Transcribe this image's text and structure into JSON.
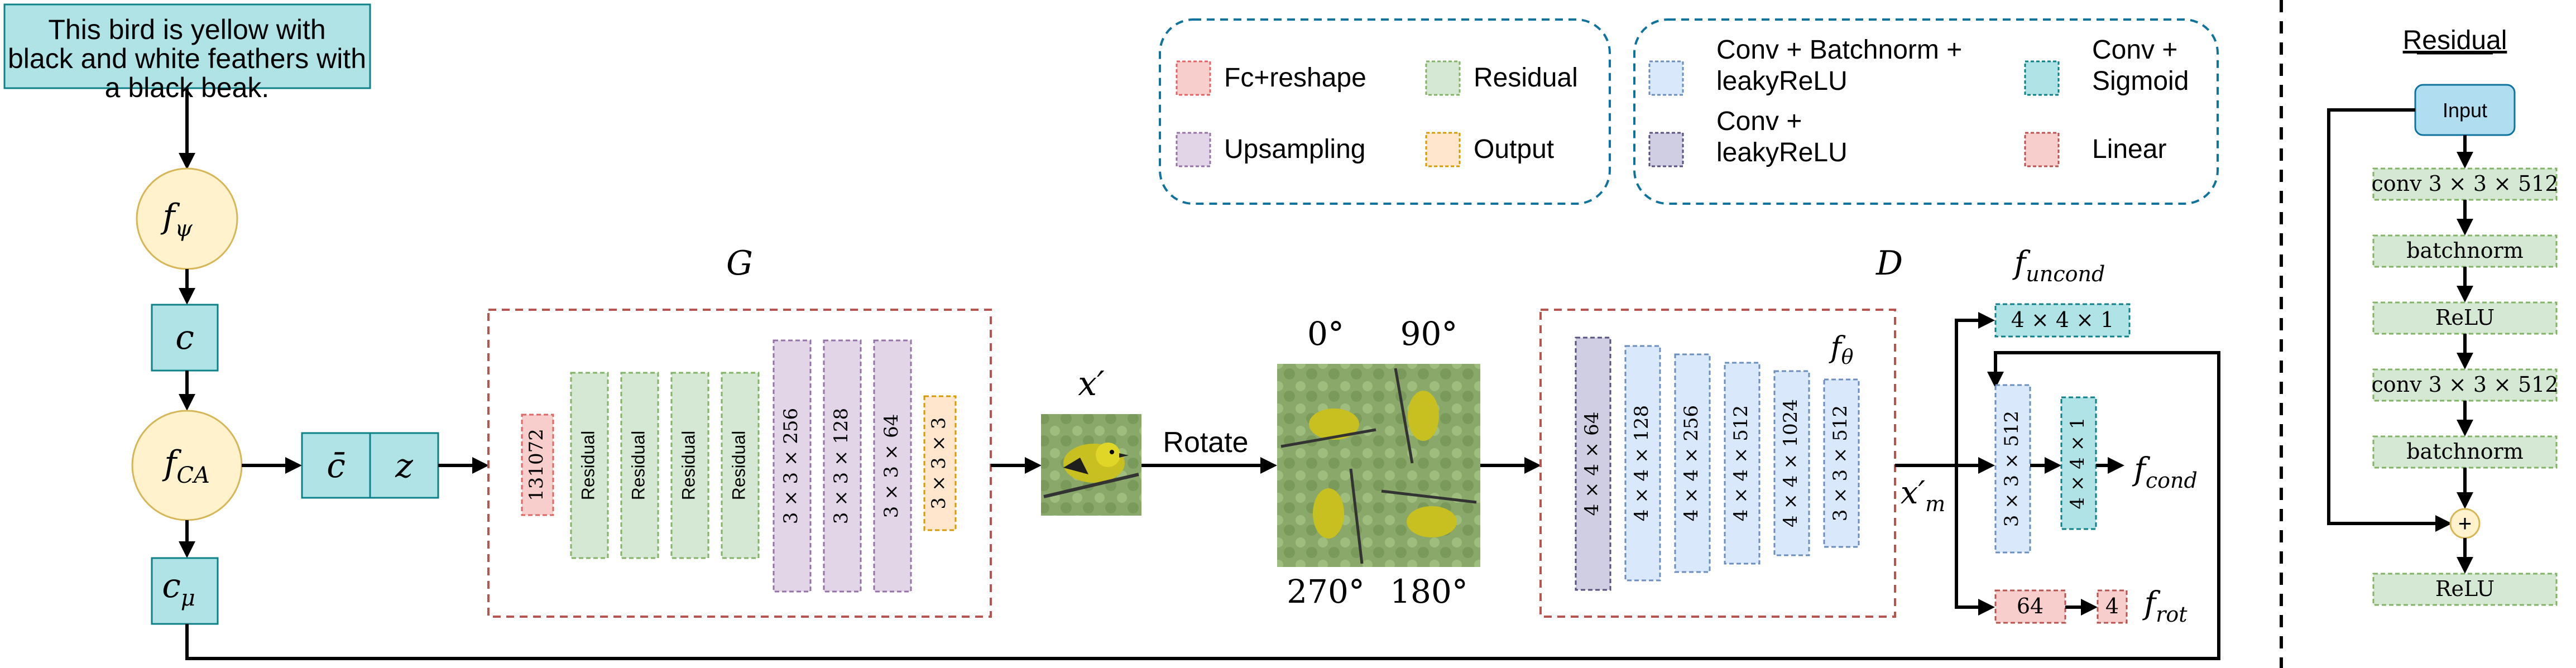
{
  "text_box": "This bird is yellow with black and white feathers with a black beak.",
  "nodes": {
    "f_psi": "f",
    "f_psi_sub": "ψ",
    "c": "c",
    "f_ca": "f",
    "f_ca_sub": "CA",
    "c_mu": "c",
    "c_mu_sub": "μ",
    "c_bar": "c̄",
    "z": "z"
  },
  "generator": {
    "label": "G",
    "layers": [
      {
        "label": "131072",
        "type": "fc"
      },
      {
        "label": "Residual",
        "type": "residual"
      },
      {
        "label": "Residual",
        "type": "residual"
      },
      {
        "label": "Residual",
        "type": "residual"
      },
      {
        "label": "Residual",
        "type": "residual"
      },
      {
        "label": "3 × 3 × 256",
        "type": "upsampling"
      },
      {
        "label": "3 × 3 × 128",
        "type": "upsampling"
      },
      {
        "label": "3 × 3 × 64",
        "type": "upsampling"
      },
      {
        "label": "3 × 3 × 3",
        "type": "output"
      }
    ]
  },
  "x_prime": "x′",
  "rotate_label": "Rotate",
  "rotations": [
    "0°",
    "90°",
    "270°",
    "180°"
  ],
  "discriminator": {
    "label": "D",
    "f_theta": "f",
    "f_theta_sub": "θ",
    "layers": [
      {
        "label": "4 × 4 × 64",
        "type": "conv_leaky"
      },
      {
        "label": "4 × 4 × 128",
        "type": "conv_bn"
      },
      {
        "label": "4 × 4 × 256",
        "type": "conv_bn"
      },
      {
        "label": "4 × 4 × 512",
        "type": "conv_bn"
      },
      {
        "label": "4 × 4 × 1024",
        "type": "conv_bn"
      },
      {
        "label": "3 × 3 × 512",
        "type": "conv_bn"
      }
    ]
  },
  "x_m": "x′",
  "x_m_sub": "m",
  "heads": {
    "uncond_label": "f",
    "uncond_sub": "uncond",
    "uncond_block": "4 × 4 × 1",
    "cond_label": "f",
    "cond_sub": "cond",
    "cond_block1": "3 × 3 × 512",
    "cond_block2": "4 × 4 × 1",
    "rot_label": "f",
    "rot_sub": "rot",
    "rot_block1": "64",
    "rot_block2": "4"
  },
  "legend_left": [
    {
      "label": "Fc+reshape",
      "type": "fc"
    },
    {
      "label": "Residual",
      "type": "residual"
    },
    {
      "label": "Upsampling",
      "type": "upsampling"
    },
    {
      "label": "Output",
      "type": "output"
    }
  ],
  "legend_right": [
    {
      "label": [
        "Conv + Batchnorm +",
        "leakyReLU"
      ],
      "type": "conv_bn"
    },
    {
      "label": [
        "Conv +",
        "Sigmoid"
      ],
      "type": "sigmoid"
    },
    {
      "label": [
        "Conv +",
        "leakyReLU"
      ],
      "type": "conv_leaky"
    },
    {
      "label": [
        "Linear"
      ],
      "type": "linear"
    }
  ],
  "residual_panel": {
    "title": "Residual",
    "input": "Input",
    "layers": [
      "conv 3 × 3 × 512",
      "batchnorm",
      "ReLU",
      "conv 3 × 3 × 512",
      "batchnorm",
      "ReLU"
    ],
    "add_symbol": "+"
  },
  "colors": {
    "fc": {
      "fill": "#f8cecc",
      "stroke": "#e06666"
    },
    "residual": {
      "fill": "#d5e8d4",
      "stroke": "#82b366"
    },
    "upsampling": {
      "fill": "#e1d5e7",
      "stroke": "#9673a6"
    },
    "output": {
      "fill": "#ffe6cc",
      "stroke": "#d79b00"
    },
    "conv_bn": {
      "fill": "#dae8fc",
      "stroke": "#6c8ebf"
    },
    "conv_leaky": {
      "fill": "#d0cee2",
      "stroke": "#56517e"
    },
    "sigmoid": {
      "fill": "#b0e3e6",
      "stroke": "#0e8088"
    },
    "linear": {
      "fill": "#f8cecc",
      "stroke": "#b85450"
    },
    "teal_node": "#b0e3e6",
    "yellow_node": "#fff2cc",
    "input_node": "#b1ddf0",
    "dashed_red": "#b85450",
    "dashed_blue": "#10739e"
  }
}
